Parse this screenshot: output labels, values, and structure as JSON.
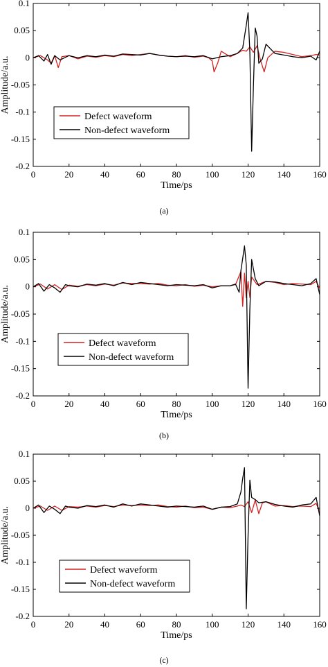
{
  "colors": {
    "defect": "#d42020",
    "non_defect": "#000000",
    "axes": "#000000"
  },
  "chart_data": [
    {
      "type": "line",
      "caption": "(a)",
      "xlabel": "Time/ps",
      "ylabel": "Amplitude/a.u.",
      "xlim": [
        0,
        160
      ],
      "ylim": [
        -0.2,
        0.1
      ],
      "xticks": [
        "0",
        "20",
        "40",
        "60",
        "80",
        "100",
        "120",
        "140",
        "160"
      ],
      "yticks": [
        "0.1",
        "0.05",
        "0",
        "-0.05",
        "-0.1",
        "-0.15",
        "-0.2"
      ],
      "grid": false,
      "legend_position": "left, middle",
      "series": [
        {
          "name": "Defect waveform",
          "color": "#d42020",
          "x": [
            0,
            4,
            8,
            10,
            12,
            14,
            16,
            20,
            25,
            30,
            35,
            40,
            45,
            50,
            55,
            60,
            65,
            70,
            75,
            80,
            85,
            90,
            95,
            98,
            100,
            101,
            103,
            105,
            110,
            114,
            117,
            119,
            121,
            123,
            125,
            127,
            129,
            131,
            135,
            140,
            145,
            150,
            155,
            158,
            160
          ],
          "y": [
            0,
            0.004,
            -0.004,
            -0.01,
            0.004,
            -0.018,
            0.002,
            0.004,
            -0.002,
            0.003,
            0.001,
            0.004,
            0.002,
            0.006,
            0.004,
            0.006,
            0.008,
            0.005,
            0.003,
            0.002,
            0.004,
            0.001,
            0.003,
            0,
            -0.006,
            -0.026,
            -0.01,
            0.012,
            0.002,
            0.008,
            0.014,
            0.012,
            0.02,
            0.01,
            0.022,
            -0.005,
            -0.026,
            0,
            0.012,
            0.01,
            0.006,
            0.002,
            0.004,
            0.006,
            0.005
          ]
        },
        {
          "name": "Non-defect waveform",
          "color": "#000000",
          "x": [
            0,
            3,
            6,
            8,
            10,
            12,
            15,
            20,
            25,
            30,
            35,
            40,
            45,
            50,
            55,
            60,
            65,
            70,
            75,
            80,
            85,
            90,
            95,
            100,
            105,
            110,
            114,
            117,
            119,
            120,
            121,
            122,
            123,
            124,
            125,
            126,
            128,
            130,
            135,
            140,
            145,
            150,
            155,
            158,
            160
          ],
          "y": [
            0,
            0.004,
            -0.006,
            0.006,
            -0.012,
            0.004,
            -0.004,
            0.004,
            0,
            0.004,
            0.002,
            0.005,
            0.003,
            0.007,
            0.006,
            0.005,
            0.008,
            0.005,
            0.003,
            0.002,
            0.003,
            0.002,
            0.004,
            -0.002,
            0.002,
            0.004,
            0.008,
            0.018,
            0.06,
            0.083,
            0.01,
            -0.172,
            -0.05,
            0.055,
            0.04,
            -0.01,
            -0.002,
            0.025,
            0.008,
            0.005,
            0.002,
            0,
            0.003,
            -0.004,
            0.012
          ]
        }
      ]
    },
    {
      "type": "line",
      "caption": "(b)",
      "xlabel": "Time/ps",
      "ylabel": "Amplitude/a.u.",
      "xlim": [
        0,
        160
      ],
      "ylim": [
        -0.2,
        0.1
      ],
      "xticks": [
        "0",
        "20",
        "40",
        "60",
        "80",
        "100",
        "120",
        "140",
        "160"
      ],
      "yticks": [
        "0.1",
        "0.05",
        "0",
        "-0.05",
        "-0.1",
        "-0.15",
        "-0.2"
      ],
      "grid": false,
      "legend_position": "left, lower-middle",
      "series": [
        {
          "name": "Defect waveform",
          "color": "#d42020",
          "x": [
            0,
            4,
            8,
            12,
            16,
            20,
            25,
            30,
            35,
            40,
            45,
            50,
            55,
            60,
            65,
            70,
            75,
            80,
            85,
            90,
            95,
            100,
            105,
            110,
            113,
            115,
            116,
            117,
            118,
            119,
            120,
            121,
            122,
            125,
            130,
            135,
            140,
            145,
            150,
            155,
            158,
            160
          ],
          "y": [
            0,
            0.005,
            -0.004,
            0.004,
            -0.005,
            0.003,
            0.001,
            0.004,
            0.002,
            0.005,
            0.003,
            0.007,
            0.006,
            0.006,
            0.005,
            0.006,
            0.003,
            0.002,
            0.004,
            0.001,
            0.003,
            0,
            0.002,
            0.002,
            0.004,
            0.02,
            0.028,
            -0.036,
            0.025,
            -0.02,
            0.01,
            -0.02,
            0.018,
            0.004,
            0.01,
            0.008,
            0.004,
            0.006,
            0.005,
            0.004,
            0.01,
            -0.003
          ]
        },
        {
          "name": "Non-defect waveform",
          "color": "#000000",
          "x": [
            0,
            3,
            6,
            9,
            12,
            15,
            18,
            20,
            25,
            30,
            35,
            40,
            45,
            50,
            55,
            60,
            65,
            70,
            75,
            80,
            85,
            90,
            95,
            100,
            105,
            110,
            113,
            115,
            116,
            117,
            118,
            119,
            120,
            121,
            122,
            124,
            126,
            130,
            135,
            140,
            145,
            150,
            155,
            158,
            160
          ],
          "y": [
            0,
            0.006,
            -0.008,
            0.004,
            -0.002,
            -0.01,
            0.004,
            0.002,
            0,
            0.005,
            0.003,
            0.006,
            0.002,
            0.008,
            0.004,
            0.008,
            0.006,
            0.004,
            0.002,
            0.004,
            0.003,
            0.002,
            0.004,
            -0.002,
            0.002,
            0.002,
            0.005,
            -0.01,
            0.03,
            0.052,
            0.075,
            0.04,
            -0.186,
            -0.04,
            0.05,
            0.015,
            0.002,
            0.01,
            0.009,
            0.006,
            0.004,
            0.002,
            0.006,
            0.015,
            -0.014
          ]
        }
      ]
    },
    {
      "type": "line",
      "caption": "(c)",
      "xlabel": "Time/ps",
      "ylabel": "Amplitude/a.u.",
      "xlim": [
        0,
        160
      ],
      "ylim": [
        -0.2,
        0.1
      ],
      "xticks": [
        "0",
        "20",
        "40",
        "60",
        "80",
        "100",
        "120",
        "140",
        "160"
      ],
      "yticks": [
        "0.1",
        "0.05",
        "0",
        "-0.05",
        "-0.1",
        "-0.15",
        "-0.2"
      ],
      "grid": false,
      "legend_position": "left, lower-middle",
      "series": [
        {
          "name": "Defect waveform",
          "color": "#d42020",
          "x": [
            0,
            4,
            8,
            12,
            16,
            20,
            25,
            30,
            35,
            40,
            45,
            50,
            55,
            60,
            65,
            70,
            75,
            80,
            85,
            90,
            95,
            100,
            105,
            110,
            114,
            116,
            118,
            120,
            122,
            124,
            126,
            128,
            130,
            135,
            140,
            145,
            150,
            155,
            158,
            160
          ],
          "y": [
            0,
            0.004,
            -0.004,
            0.004,
            -0.004,
            0.003,
            0.002,
            0.004,
            0.002,
            0.005,
            0.003,
            0.006,
            0.005,
            0.006,
            0.005,
            0.006,
            0.003,
            0.002,
            0.004,
            0.001,
            0.002,
            -0.002,
            0.002,
            0.001,
            0.004,
            0.006,
            0.003,
            0.012,
            -0.008,
            0.015,
            -0.01,
            0.01,
            0.012,
            0.004,
            0.005,
            0.003,
            0.004,
            0.003,
            0.009,
            -0.006
          ]
        },
        {
          "name": "Non-defect waveform",
          "color": "#000000",
          "x": [
            0,
            3,
            6,
            9,
            12,
            15,
            18,
            20,
            25,
            30,
            35,
            40,
            45,
            50,
            55,
            60,
            65,
            70,
            75,
            80,
            85,
            90,
            95,
            100,
            105,
            110,
            114,
            116,
            117,
            118,
            119,
            120,
            121,
            122,
            124,
            126,
            130,
            135,
            140,
            145,
            150,
            155,
            158,
            160
          ],
          "y": [
            0,
            0.006,
            -0.008,
            0.004,
            -0.002,
            -0.01,
            0.004,
            0.002,
            0,
            0.005,
            0.003,
            0.006,
            0.002,
            0.008,
            0.004,
            0.008,
            0.006,
            0.004,
            0.002,
            0.004,
            0.003,
            0.002,
            0.004,
            -0.002,
            0.002,
            0.003,
            0.008,
            0.03,
            0.055,
            0.075,
            -0.186,
            -0.05,
            0.052,
            0.02,
            0.016,
            0.01,
            0.012,
            0.007,
            0.004,
            0.002,
            0.006,
            0.008,
            0.02,
            -0.014
          ]
        }
      ]
    }
  ]
}
